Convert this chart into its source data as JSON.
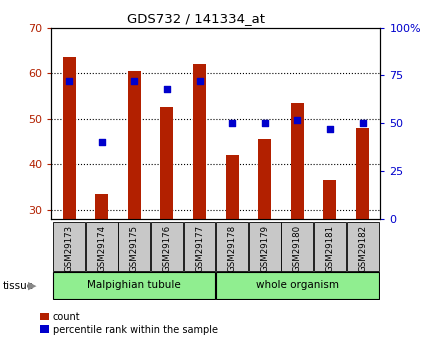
{
  "title": "GDS732 / 141334_at",
  "samples": [
    "GSM29173",
    "GSM29174",
    "GSM29175",
    "GSM29176",
    "GSM29177",
    "GSM29178",
    "GSM29179",
    "GSM29180",
    "GSM29181",
    "GSM29182"
  ],
  "counts": [
    63.5,
    33.5,
    60.5,
    52.5,
    62.0,
    42.0,
    45.5,
    53.5,
    36.5,
    48.0
  ],
  "percentiles": [
    72,
    40,
    72,
    68,
    72,
    50,
    50,
    52,
    47,
    50
  ],
  "ylim_left": [
    28,
    70
  ],
  "ylim_right": [
    0,
    100
  ],
  "yticks_left": [
    30,
    40,
    50,
    60,
    70
  ],
  "yticks_right": [
    0,
    25,
    50,
    75,
    100
  ],
  "bar_color": "#B22000",
  "dot_color": "#0000CC",
  "bar_width": 0.4,
  "tissue_bg_color": "#90EE90",
  "grid_color": "#000000",
  "legend_items": [
    "count",
    "percentile rank within the sample"
  ],
  "bar_bottom": 28,
  "group1_label": "Malpighian tubule",
  "group1_indices": [
    0,
    1,
    2,
    3,
    4
  ],
  "group2_label": "whole organism",
  "group2_indices": [
    5,
    6,
    7,
    8,
    9
  ]
}
